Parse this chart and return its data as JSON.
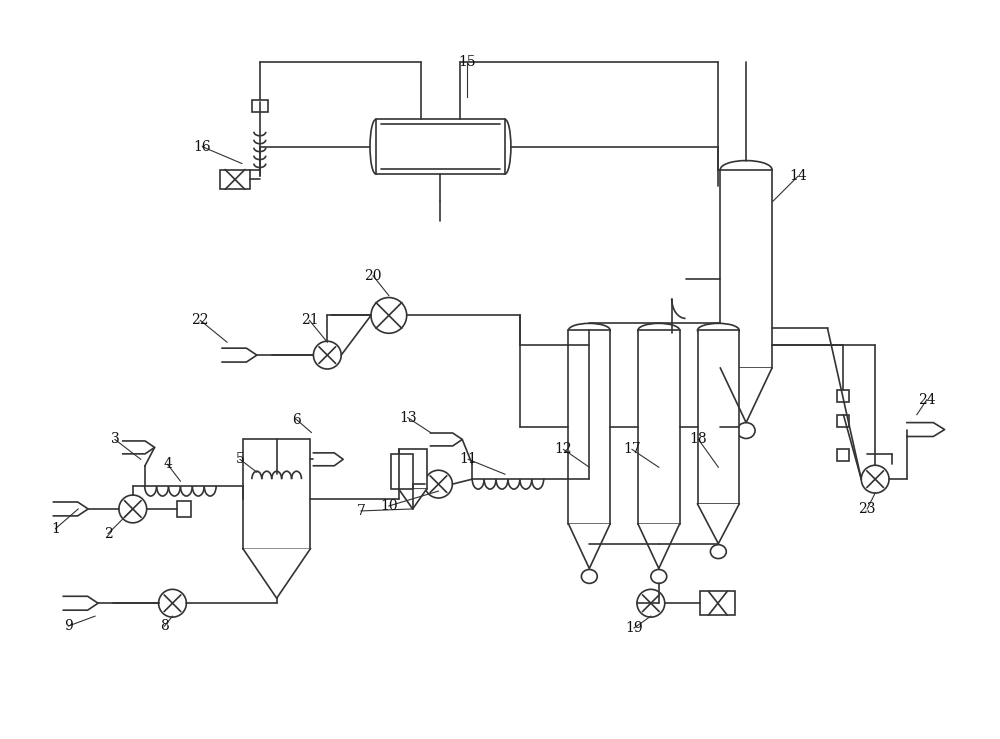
{
  "bg_color": "#ffffff",
  "line_color": "#333333",
  "lw": 1.2,
  "fig_width": 10.0,
  "fig_height": 7.39,
  "dpi": 100
}
